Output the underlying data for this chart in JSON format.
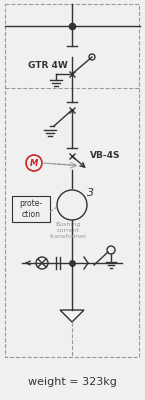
{
  "title": "weight = 323kg",
  "label_gtr": "GTR 4W",
  "label_vb": "VB-4S",
  "label_protection": "prote-\nction",
  "label_bushing": "Bushing\ncurrent\ntransformer",
  "label_3": "3",
  "background": "#f0f0f0",
  "line_color": "#333333",
  "dashed_color": "#999999",
  "red_color": "#cc2222",
  "fig_width": 1.45,
  "fig_height": 4.0,
  "dpi": 100
}
